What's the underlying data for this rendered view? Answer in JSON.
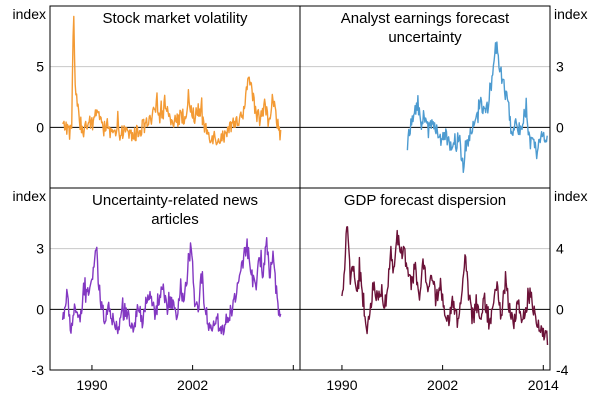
{
  "chart_data": {
    "type": "line",
    "x_ticks": [
      "1990",
      "2002",
      "2014"
    ],
    "panels": [
      {
        "id": "stock",
        "title": [
          "Stock market volatility"
        ],
        "unit": "index",
        "axis_side": "left",
        "ylim": [
          -5,
          10
        ],
        "yticks": [
          0,
          5
        ],
        "ytick_labels": [
          "0",
          "5"
        ],
        "color": "#F39A34",
        "x_start": 1986.5,
        "x_end": 2012.5,
        "anchors": [
          [
            1986.5,
            0.0
          ],
          [
            1986.9,
            0.2
          ],
          [
            1987.3,
            -0.5
          ],
          [
            1987.6,
            0.4
          ],
          [
            1987.8,
            10.0
          ],
          [
            1988.0,
            3.5
          ],
          [
            1988.3,
            1.2
          ],
          [
            1988.6,
            0.3
          ],
          [
            1989.0,
            -0.3
          ],
          [
            1989.5,
            0.2
          ],
          [
            1990.2,
            0.4
          ],
          [
            1990.6,
            1.6
          ],
          [
            1991.0,
            0.8
          ],
          [
            1991.5,
            0.0
          ],
          [
            1992.0,
            -0.5
          ],
          [
            1993.0,
            -0.6
          ],
          [
            1994.0,
            -0.4
          ],
          [
            1995.0,
            -0.7
          ],
          [
            1996.0,
            0.0
          ],
          [
            1997.0,
            0.4
          ],
          [
            1997.8,
            1.9
          ],
          [
            1998.2,
            0.7
          ],
          [
            1998.7,
            2.0
          ],
          [
            1999.2,
            1.0
          ],
          [
            1999.8,
            0.6
          ],
          [
            2000.5,
            0.8
          ],
          [
            2001.2,
            0.9
          ],
          [
            2001.7,
            1.7
          ],
          [
            2002.3,
            0.7
          ],
          [
            2002.7,
            1.6
          ],
          [
            2003.2,
            0.4
          ],
          [
            2004.0,
            -0.6
          ],
          [
            2005.0,
            -0.9
          ],
          [
            2006.0,
            -0.7
          ],
          [
            2006.5,
            -0.2
          ],
          [
            2007.3,
            0.5
          ],
          [
            2007.9,
            0.8
          ],
          [
            2008.3,
            2.0
          ],
          [
            2008.75,
            4.6
          ],
          [
            2009.1,
            2.8
          ],
          [
            2009.6,
            1.0
          ],
          [
            2010.2,
            0.7
          ],
          [
            2010.6,
            2.2
          ],
          [
            2011.0,
            0.5
          ],
          [
            2011.6,
            2.5
          ],
          [
            2012.0,
            0.4
          ],
          [
            2012.5,
            -0.5
          ]
        ]
      },
      {
        "id": "analyst",
        "title": [
          "Analyst earnings forecast",
          "uncertainty"
        ],
        "unit": "index",
        "axis_side": "right",
        "ylim": [
          -3,
          6
        ],
        "yticks": [
          0,
          3
        ],
        "ytick_labels": [
          "0",
          "3"
        ],
        "color": "#4D9BD0",
        "x_start": 1997.8,
        "x_end": 2014.5,
        "anchors": [
          [
            1997.8,
            -0.8
          ],
          [
            1998.2,
            0.0
          ],
          [
            1998.7,
            0.8
          ],
          [
            1999.0,
            1.3
          ],
          [
            1999.4,
            0.2
          ],
          [
            1999.8,
            0.6
          ],
          [
            2000.3,
            -0.2
          ],
          [
            2000.8,
            0.3
          ],
          [
            2001.3,
            0.0
          ],
          [
            2001.8,
            -0.6
          ],
          [
            2002.3,
            -0.4
          ],
          [
            2002.8,
            -0.9
          ],
          [
            2003.3,
            -0.6
          ],
          [
            2004.0,
            -1.0
          ],
          [
            2004.5,
            -2.0
          ],
          [
            2005.0,
            -0.6
          ],
          [
            2005.5,
            -0.2
          ],
          [
            2006.0,
            0.5
          ],
          [
            2006.5,
            1.4
          ],
          [
            2007.0,
            0.7
          ],
          [
            2007.5,
            1.0
          ],
          [
            2008.0,
            3.0
          ],
          [
            2008.5,
            4.0
          ],
          [
            2009.0,
            2.5
          ],
          [
            2009.4,
            1.8
          ],
          [
            2009.8,
            1.1
          ],
          [
            2010.3,
            -0.5
          ],
          [
            2010.8,
            0.4
          ],
          [
            2011.3,
            -0.3
          ],
          [
            2011.8,
            0.8
          ],
          [
            2012.3,
            -0.6
          ],
          [
            2012.8,
            -0.9
          ],
          [
            2013.3,
            -1.2
          ],
          [
            2013.8,
            -0.5
          ],
          [
            2014.3,
            -0.8
          ]
        ]
      },
      {
        "id": "news",
        "title": [
          "Uncertainty-related news",
          "articles"
        ],
        "unit": "index",
        "axis_side": "left",
        "ylim": [
          -3,
          6
        ],
        "yticks": [
          -3,
          0,
          3
        ],
        "ytick_labels": [
          "-3",
          "0",
          "3"
        ],
        "color": "#8338C2",
        "x_start": 1986.5,
        "x_end": 2012.5,
        "anchors": [
          [
            1986.5,
            -0.5
          ],
          [
            1987.0,
            0.7
          ],
          [
            1987.5,
            -1.0
          ],
          [
            1988.0,
            0.2
          ],
          [
            1988.5,
            -0.6
          ],
          [
            1989.0,
            0.5
          ],
          [
            1989.5,
            0.9
          ],
          [
            1990.0,
            1.4
          ],
          [
            1990.5,
            2.8
          ],
          [
            1991.0,
            0.4
          ],
          [
            1991.5,
            -0.4
          ],
          [
            1992.0,
            0.3
          ],
          [
            1992.5,
            -0.6
          ],
          [
            1993.0,
            -0.9
          ],
          [
            1993.5,
            -0.4
          ],
          [
            1994.0,
            0.0
          ],
          [
            1994.5,
            -0.5
          ],
          [
            1995.0,
            -0.8
          ],
          [
            1995.5,
            0.2
          ],
          [
            1996.0,
            -0.7
          ],
          [
            1996.5,
            0.4
          ],
          [
            1997.0,
            0.7
          ],
          [
            1997.5,
            -0.3
          ],
          [
            1998.0,
            0.5
          ],
          [
            1998.5,
            1.0
          ],
          [
            1999.0,
            -0.3
          ],
          [
            1999.5,
            0.6
          ],
          [
            2000.0,
            -0.5
          ],
          [
            2000.5,
            0.8
          ],
          [
            2001.0,
            0.2
          ],
          [
            2001.5,
            2.4
          ],
          [
            2001.8,
            3.1
          ],
          [
            2002.2,
            0.5
          ],
          [
            2002.6,
            -0.2
          ],
          [
            2003.0,
            1.5
          ],
          [
            2003.5,
            0.1
          ],
          [
            2004.0,
            -0.8
          ],
          [
            2004.5,
            -0.7
          ],
          [
            2005.0,
            -0.6
          ],
          [
            2005.5,
            -1.1
          ],
          [
            2006.0,
            -0.5
          ],
          [
            2006.5,
            -0.2
          ],
          [
            2007.0,
            0.6
          ],
          [
            2007.5,
            1.3
          ],
          [
            2008.0,
            2.4
          ],
          [
            2008.5,
            3.1
          ],
          [
            2009.0,
            1.9
          ],
          [
            2009.5,
            1.1
          ],
          [
            2010.0,
            2.8
          ],
          [
            2010.4,
            1.2
          ],
          [
            2010.8,
            3.7
          ],
          [
            2011.2,
            1.5
          ],
          [
            2011.6,
            3.0
          ],
          [
            2012.0,
            0.4
          ],
          [
            2012.5,
            -0.7
          ]
        ]
      },
      {
        "id": "gdp",
        "title": [
          "GDP forecast dispersion"
        ],
        "unit": "index",
        "axis_side": "right",
        "ylim": [
          -4,
          8
        ],
        "yticks": [
          -4,
          0,
          4
        ],
        "ytick_labels": [
          "-4",
          "0",
          "4"
        ],
        "color": "#6B1238",
        "x_start": 1990.0,
        "x_end": 2014.5,
        "anchors": [
          [
            1990.0,
            0.5
          ],
          [
            1990.3,
            2.5
          ],
          [
            1990.6,
            5.5
          ],
          [
            1991.0,
            2.0
          ],
          [
            1991.4,
            3.2
          ],
          [
            1991.8,
            1.0
          ],
          [
            1992.2,
            2.5
          ],
          [
            1992.6,
            -0.5
          ],
          [
            1993.0,
            -1.8
          ],
          [
            1993.4,
            0.2
          ],
          [
            1993.8,
            1.8
          ],
          [
            1994.2,
            0.5
          ],
          [
            1994.6,
            1.5
          ],
          [
            1995.0,
            0.4
          ],
          [
            1995.4,
            0.8
          ],
          [
            1995.8,
            4.0
          ],
          [
            1996.2,
            2.5
          ],
          [
            1996.6,
            5.0
          ],
          [
            1997.0,
            3.5
          ],
          [
            1997.4,
            3.8
          ],
          [
            1997.8,
            2.6
          ],
          [
            1998.3,
            1.5
          ],
          [
            1998.7,
            3.0
          ],
          [
            1999.2,
            0.5
          ],
          [
            1999.7,
            3.2
          ],
          [
            2000.2,
            1.2
          ],
          [
            2000.7,
            2.5
          ],
          [
            2001.2,
            0.5
          ],
          [
            2001.7,
            1.8
          ],
          [
            2002.2,
            -0.3
          ],
          [
            2002.7,
            -0.9
          ],
          [
            2003.2,
            0.5
          ],
          [
            2003.7,
            -0.6
          ],
          [
            2004.2,
            0.6
          ],
          [
            2004.7,
            3.6
          ],
          [
            2005.1,
            1.0
          ],
          [
            2005.5,
            -0.6
          ],
          [
            2006.0,
            0.5
          ],
          [
            2006.5,
            -0.8
          ],
          [
            2007.0,
            0.6
          ],
          [
            2007.5,
            -1.0
          ],
          [
            2008.0,
            0.3
          ],
          [
            2008.5,
            1.5
          ],
          [
            2009.0,
            -0.5
          ],
          [
            2009.5,
            2.0
          ],
          [
            2010.0,
            0.0
          ],
          [
            2010.5,
            -0.8
          ],
          [
            2011.0,
            0.4
          ],
          [
            2011.5,
            -1.0
          ],
          [
            2012.0,
            0.3
          ],
          [
            2012.5,
            1.2
          ],
          [
            2013.0,
            -0.6
          ],
          [
            2013.5,
            -1.2
          ],
          [
            2014.0,
            -1.6
          ],
          [
            2014.5,
            -2.0
          ]
        ]
      }
    ]
  }
}
